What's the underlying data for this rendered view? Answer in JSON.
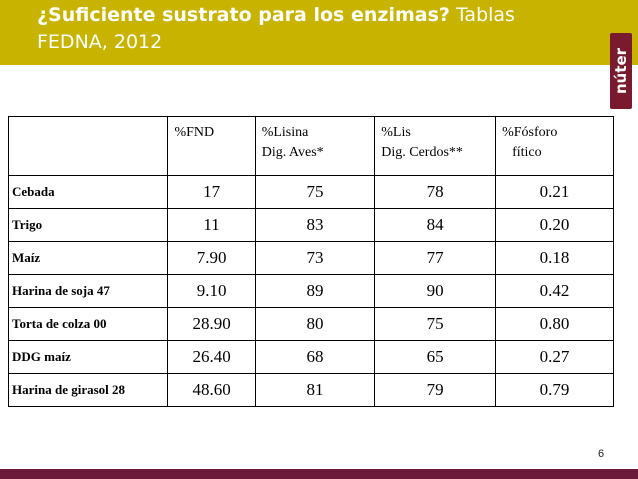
{
  "header": {
    "title_bold": "¿Suficiente sustrato para los enzimas?",
    "title_rest": " Tablas FEDNA, 2012",
    "logo_text": "núter",
    "background_color": "#c8b400"
  },
  "table": {
    "columns": [
      "",
      "%FND",
      {
        "line1": "%Lisina",
        "line2": "Dig. Aves*"
      },
      {
        "line1": "%Lis",
        "line2": "Dig. Cerdos**"
      },
      {
        "line1": "%Fósforo",
        "line2": "fítico"
      }
    ],
    "rows": [
      {
        "label": "Cebada",
        "fnd": "17",
        "lis_aves": "75",
        "lis_cerdos": "78",
        "fosforo": "0.21"
      },
      {
        "label": "Trigo",
        "fnd": "11",
        "lis_aves": "83",
        "lis_cerdos": "84",
        "fosforo": "0.20"
      },
      {
        "label": "Maíz",
        "fnd": "7.90",
        "lis_aves": "73",
        "lis_cerdos": "77",
        "fosforo": "0.18"
      },
      {
        "label": "Harina de soja 47",
        "fnd": "9.10",
        "lis_aves": "89",
        "lis_cerdos": "90",
        "fosforo": "0.42"
      },
      {
        "label": "Torta de colza 00",
        "fnd": "28.90",
        "lis_aves": "80",
        "lis_cerdos": "75",
        "fosforo": "0.80"
      },
      {
        "label": "DDG maíz",
        "fnd": "26.40",
        "lis_aves": "68",
        "lis_cerdos": "65",
        "fosforo": "0.27"
      },
      {
        "label": "Harina de girasol 28",
        "fnd": "48.60",
        "lis_aves": "81",
        "lis_cerdos": "79",
        "fosforo": "0.79"
      }
    ]
  },
  "footer": {
    "page_number": "6",
    "bar_color": "#6b1a3a"
  }
}
